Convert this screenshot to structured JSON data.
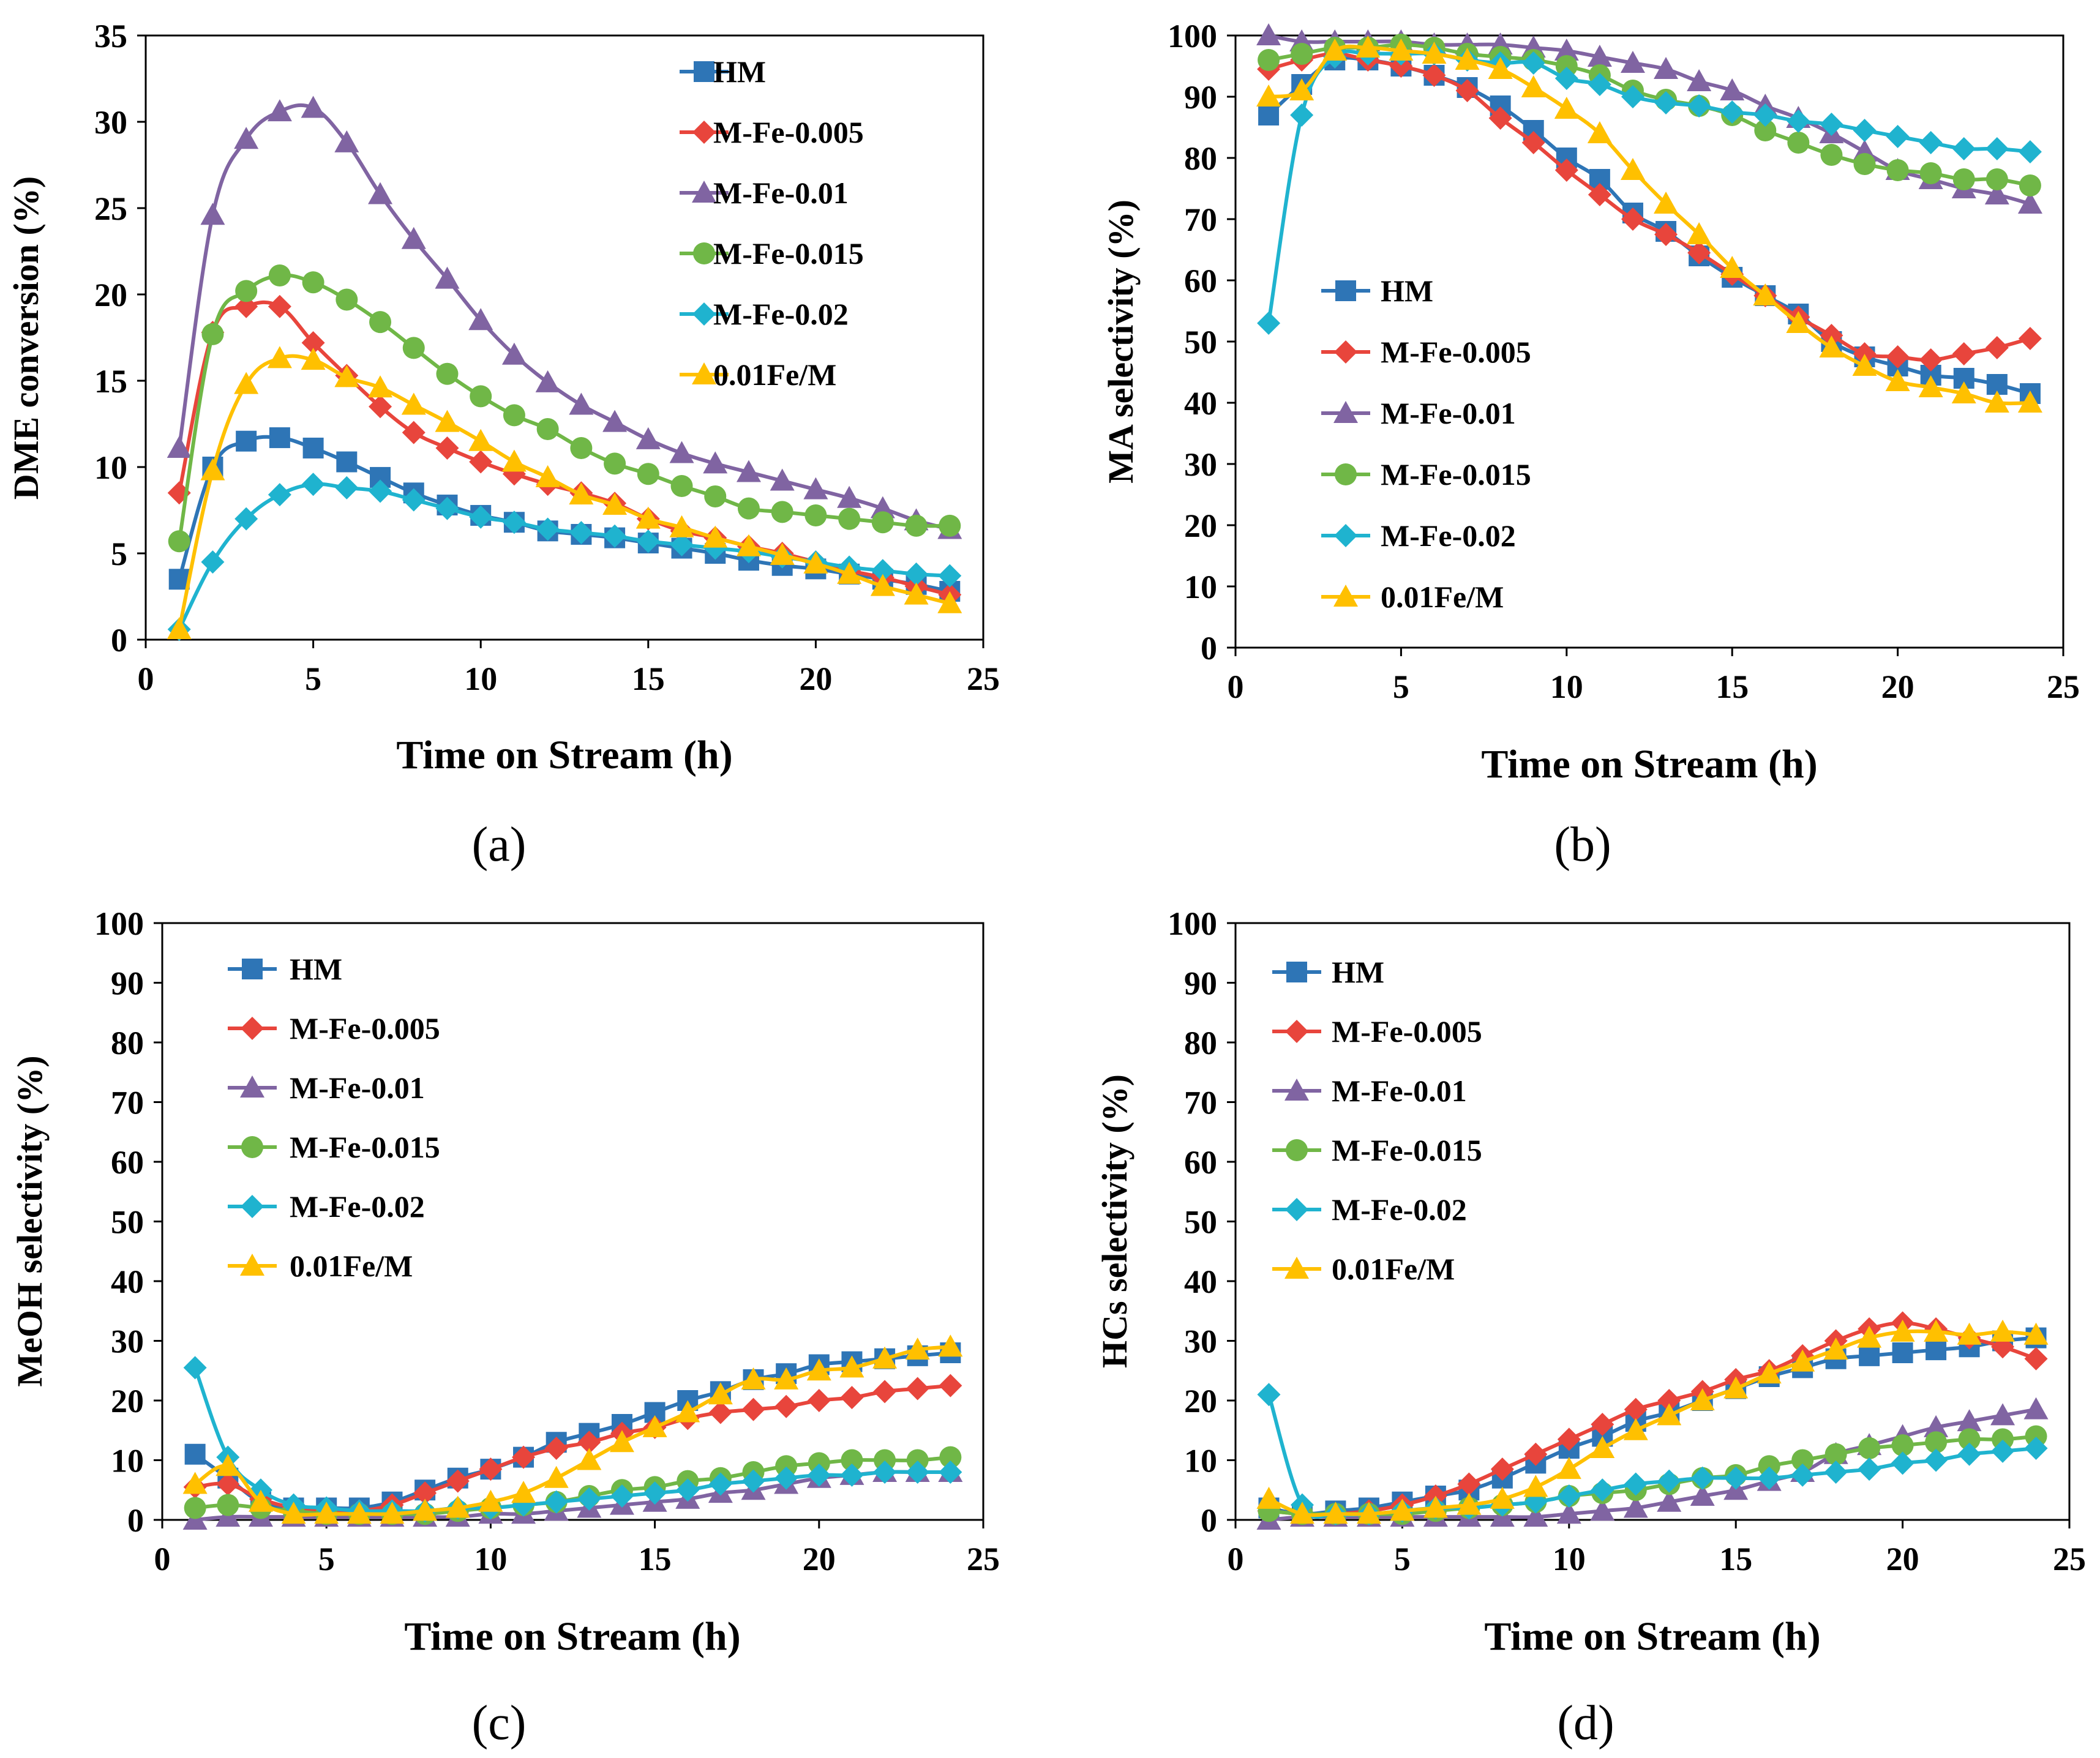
{
  "colors": {
    "HM": "#2E75B6",
    "M-Fe-0.005": "#E8453C",
    "M-Fe-0.01": "#8064A2",
    "M-Fe-0.015": "#70B747",
    "M-Fe-0.02": "#1FB3CF",
    "0.01Fe/M": "#FFC000"
  },
  "chart_data": [
    {
      "type": "line",
      "panel_label": "(a)",
      "title": "",
      "xlabel": "Time on Stream (h)",
      "ylabel": "DME conversion (%)",
      "xlim": [
        0,
        25
      ],
      "ylim": [
        0,
        35
      ],
      "xticks": [
        "0",
        "5",
        "10",
        "15",
        "20",
        "25"
      ],
      "yticks": [
        "0",
        "5",
        "10",
        "15",
        "20",
        "25",
        "30",
        "35"
      ],
      "legend_position": "top-right",
      "x": [
        1,
        2,
        3,
        4,
        5,
        6,
        7,
        8,
        9,
        10,
        11,
        12,
        13,
        14,
        15,
        16,
        17,
        18,
        19,
        20,
        21,
        22,
        23,
        24
      ],
      "series": [
        {
          "name": "HM",
          "marker": "square",
          "values": [
            3.5,
            10,
            11.5,
            11.7,
            11.1,
            10.3,
            9.4,
            8.5,
            7.8,
            7.2,
            6.8,
            6.3,
            6.1,
            5.9,
            5.6,
            5.3,
            5.0,
            4.6,
            4.3,
            4.1,
            3.8,
            3.5,
            3.2,
            2.8
          ]
        },
        {
          "name": "M-Fe-0.005",
          "marker": "diamond",
          "values": [
            8.5,
            17.8,
            19.3,
            19.3,
            17.2,
            15.3,
            13.5,
            12.0,
            11.1,
            10.3,
            9.6,
            9.0,
            8.5,
            7.9,
            7.0,
            6.3,
            5.9,
            5.4,
            5.0,
            4.5,
            4.0,
            3.6,
            3.1,
            2.6
          ]
        },
        {
          "name": "M-Fe-0.01",
          "marker": "triangle",
          "values": [
            11.1,
            24.6,
            29.0,
            30.6,
            30.8,
            28.8,
            25.8,
            23.2,
            20.9,
            18.5,
            16.5,
            14.9,
            13.6,
            12.6,
            11.6,
            10.8,
            10.2,
            9.7,
            9.2,
            8.7,
            8.2,
            7.6,
            6.9,
            6.4
          ]
        },
        {
          "name": "M-Fe-0.015",
          "marker": "circle",
          "values": [
            5.7,
            17.7,
            20.2,
            21.1,
            20.7,
            19.7,
            18.4,
            16.9,
            15.4,
            14.1,
            13.0,
            12.2,
            11.1,
            10.2,
            9.6,
            8.9,
            8.3,
            7.6,
            7.4,
            7.2,
            7.0,
            6.8,
            6.6,
            6.6
          ]
        },
        {
          "name": "M-Fe-0.02",
          "marker": "diamond",
          "values": [
            0.6,
            4.5,
            7.0,
            8.4,
            9.0,
            8.8,
            8.6,
            8.1,
            7.6,
            7.1,
            6.8,
            6.4,
            6.2,
            6.0,
            5.7,
            5.5,
            5.3,
            5.1,
            4.8,
            4.5,
            4.2,
            4.0,
            3.8,
            3.7
          ]
        },
        {
          "name": "0.01Fe/M",
          "marker": "triangle",
          "values": [
            0.6,
            9.8,
            14.8,
            16.3,
            16.2,
            15.2,
            14.6,
            13.6,
            12.6,
            11.5,
            10.3,
            9.4,
            8.4,
            7.8,
            7.0,
            6.5,
            5.9,
            5.4,
            4.9,
            4.4,
            3.8,
            3.1,
            2.6,
            2.1
          ]
        }
      ]
    },
    {
      "type": "line",
      "panel_label": "(b)",
      "title": "",
      "xlabel": "Time on Stream (h)",
      "ylabel": "MA selectivity (%)",
      "xlim": [
        0,
        25
      ],
      "ylim": [
        0,
        100
      ],
      "xticks": [
        "0",
        "5",
        "10",
        "15",
        "20",
        "25"
      ],
      "yticks": [
        "0",
        "10",
        "20",
        "30",
        "40",
        "50",
        "60",
        "70",
        "80",
        "90",
        "100"
      ],
      "legend_position": "center-left",
      "x": [
        1,
        2,
        3,
        4,
        5,
        6,
        7,
        8,
        9,
        10,
        11,
        12,
        13,
        14,
        15,
        16,
        17,
        18,
        19,
        20,
        21,
        22,
        23,
        24
      ],
      "series": [
        {
          "name": "HM",
          "marker": "square",
          "values": [
            87,
            92,
            96,
            96,
            95,
            93.5,
            91.5,
            88.5,
            84.5,
            80,
            76.5,
            71,
            68,
            64,
            60.5,
            57.5,
            54.5,
            50,
            47.5,
            46,
            44.5,
            44,
            43,
            41.5
          ]
        },
        {
          "name": "M-Fe-0.005",
          "marker": "diamond",
          "values": [
            94.5,
            96,
            97,
            96,
            95,
            93.5,
            91,
            86.5,
            82.5,
            78,
            74,
            70,
            67.5,
            64.5,
            61,
            57.5,
            54,
            51,
            48,
            47.5,
            47,
            48,
            49,
            50.5
          ]
        },
        {
          "name": "M-Fe-0.01",
          "marker": "triangle",
          "values": [
            100,
            99,
            99,
            99,
            99,
            98.5,
            98.5,
            98.5,
            98,
            97.5,
            96.5,
            95.5,
            94.5,
            92.5,
            91,
            88.5,
            86.5,
            84,
            81,
            78,
            76.5,
            75,
            74,
            72.5
          ]
        },
        {
          "name": "M-Fe-0.015",
          "marker": "circle",
          "values": [
            96,
            97,
            98,
            98,
            98.5,
            98,
            97,
            96.5,
            96,
            95,
            93.5,
            91,
            89.5,
            88.5,
            87,
            84.5,
            82.5,
            80.5,
            79,
            78,
            77.5,
            76.5,
            76.5,
            75.5
          ]
        },
        {
          "name": "M-Fe-0.02",
          "marker": "diamond",
          "values": [
            53,
            87,
            96.5,
            97,
            97,
            97,
            96,
            95.5,
            95.5,
            93,
            92,
            90,
            89,
            88.5,
            87.5,
            87,
            86,
            85.5,
            84.5,
            83.5,
            82.5,
            81.5,
            81.5,
            81
          ]
        },
        {
          "name": "0.01Fe/M",
          "marker": "triangle",
          "values": [
            90,
            91,
            97.5,
            98,
            97.5,
            97,
            96,
            94.5,
            91.5,
            88,
            84,
            78,
            72.5,
            67.5,
            62,
            57.5,
            53,
            49,
            46,
            43.5,
            42.5,
            41.5,
            40,
            40
          ]
        }
      ]
    },
    {
      "type": "line",
      "panel_label": "(c)",
      "title": "",
      "xlabel": "Time on Stream (h)",
      "ylabel": "MeOH selectivity (%)",
      "xlim": [
        0,
        25
      ],
      "ylim": [
        0,
        100
      ],
      "xticks": [
        "0",
        "5",
        "10",
        "15",
        "20",
        "25"
      ],
      "yticks": [
        "0",
        "10",
        "20",
        "30",
        "40",
        "50",
        "60",
        "70",
        "80",
        "90",
        "100"
      ],
      "legend_position": "top-left",
      "x": [
        1,
        2,
        3,
        4,
        5,
        6,
        7,
        8,
        9,
        10,
        11,
        12,
        13,
        14,
        15,
        16,
        17,
        18,
        19,
        20,
        21,
        22,
        23,
        24
      ],
      "series": [
        {
          "name": "HM",
          "marker": "square",
          "values": [
            11,
            7,
            3,
            2,
            2,
            2,
            3,
            5,
            7,
            8.5,
            10.5,
            13,
            14.5,
            16,
            18,
            20,
            21.5,
            23.5,
            24.5,
            26,
            26.5,
            27,
            27.5,
            28
          ]
        },
        {
          "name": "M-Fe-0.005",
          "marker": "diamond",
          "values": [
            5.5,
            6,
            3.5,
            2,
            1.5,
            1.5,
            2.5,
            4.5,
            6.5,
            8.5,
            10.5,
            12,
            13,
            14.5,
            15.5,
            17,
            18,
            18.5,
            19,
            20,
            20.5,
            21.5,
            22,
            22.5
          ]
        },
        {
          "name": "M-Fe-0.01",
          "marker": "triangle",
          "values": [
            0,
            0.5,
            0.5,
            0.5,
            0.5,
            0.5,
            0.5,
            0.5,
            0.5,
            1,
            1,
            1.5,
            2,
            2.5,
            3,
            3.5,
            4.5,
            5,
            6,
            7,
            7.5,
            8,
            8,
            8
          ]
        },
        {
          "name": "M-Fe-0.015",
          "marker": "circle",
          "values": [
            2,
            2.5,
            2,
            1.5,
            1,
            1,
            1,
            1,
            1.5,
            2,
            2.5,
            3,
            4,
            5,
            5.5,
            6.5,
            7,
            8,
            9,
            9.5,
            10,
            10,
            10,
            10.5
          ]
        },
        {
          "name": "M-Fe-0.02",
          "marker": "diamond",
          "values": [
            25.5,
            10.5,
            5,
            2.5,
            2,
            1.5,
            1.5,
            1.5,
            2,
            2,
            2.5,
            3,
            3.5,
            4,
            4.5,
            5,
            6,
            6.5,
            7,
            7.5,
            7.5,
            8,
            8,
            8
          ]
        },
        {
          "name": "0.01Fe/M",
          "marker": "triangle",
          "values": [
            6,
            9,
            3,
            1,
            1,
            1,
            1,
            1.5,
            2,
            3,
            4.5,
            7,
            10,
            13,
            15.5,
            18,
            21,
            23.5,
            23.5,
            25,
            25.5,
            27,
            28.5,
            29
          ]
        }
      ]
    },
    {
      "type": "line",
      "panel_label": "(d)",
      "title": "",
      "xlabel": "Time on Stream (h)",
      "ylabel": "HCs selectivity (%)",
      "xlim": [
        0,
        25
      ],
      "ylim": [
        0,
        100
      ],
      "xticks": [
        "0",
        "5",
        "10",
        "15",
        "20",
        "25"
      ],
      "yticks": [
        "0",
        "10",
        "20",
        "30",
        "40",
        "50",
        "60",
        "70",
        "80",
        "90",
        "100"
      ],
      "legend_position": "top-left",
      "x": [
        1,
        2,
        3,
        4,
        5,
        6,
        7,
        8,
        9,
        10,
        11,
        12,
        13,
        14,
        15,
        16,
        17,
        18,
        19,
        20,
        21,
        22,
        23,
        24
      ],
      "series": [
        {
          "name": "HM",
          "marker": "square",
          "values": [
            2,
            1,
            1.5,
            2,
            3,
            4,
            5,
            7,
            9.5,
            12,
            14,
            16.5,
            18,
            20,
            22,
            24,
            25.5,
            27,
            27.5,
            28,
            28.5,
            29,
            30,
            30.5
          ]
        },
        {
          "name": "M-Fe-0.005",
          "marker": "diamond",
          "values": [
            1.5,
            1,
            1,
            1.5,
            2.5,
            4,
            6,
            8.5,
            11,
            13.5,
            16,
            18.5,
            20,
            21.5,
            23.5,
            25,
            27.5,
            30,
            32,
            33,
            32,
            30.5,
            29,
            27
          ]
        },
        {
          "name": "M-Fe-0.01",
          "marker": "triangle",
          "values": [
            0,
            0.5,
            0.5,
            0.5,
            0.5,
            0.5,
            0.5,
            0.5,
            0.5,
            1,
            1.5,
            2,
            3,
            4,
            5,
            6.5,
            8,
            11,
            12.5,
            14,
            15.5,
            16.5,
            17.5,
            18.5
          ]
        },
        {
          "name": "M-Fe-0.015",
          "marker": "circle",
          "values": [
            1.5,
            1,
            1,
            1,
            1,
            1.5,
            2,
            2.5,
            3,
            4,
            4.5,
            5,
            6,
            7,
            7.5,
            9,
            10,
            11,
            12,
            12.5,
            13,
            13.5,
            13.5,
            14
          ]
        },
        {
          "name": "M-Fe-0.02",
          "marker": "diamond",
          "values": [
            21,
            2.5,
            1,
            1,
            1.5,
            2,
            2,
            2.5,
            3,
            4,
            5,
            6,
            6.5,
            7,
            7,
            7,
            7.5,
            8,
            8.5,
            9.5,
            10,
            11,
            11.5,
            12
          ]
        },
        {
          "name": "0.01Fe/M",
          "marker": "triangle",
          "values": [
            3.5,
            1,
            1,
            1,
            1.5,
            2,
            2.5,
            3.5,
            5.5,
            8.5,
            12,
            15,
            17.5,
            20,
            22,
            24.5,
            26.5,
            28.5,
            30.5,
            31.5,
            31.5,
            31,
            31.5,
            31
          ]
        }
      ]
    }
  ]
}
